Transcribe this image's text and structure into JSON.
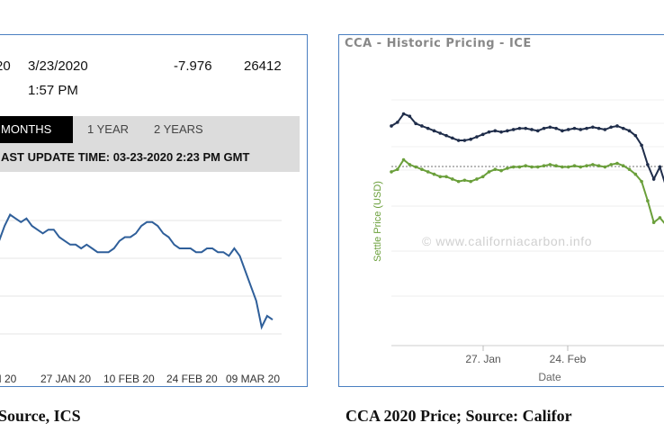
{
  "left": {
    "header": {
      "col0": "20",
      "date": "3/23/2020",
      "time": "1:57 PM",
      "change": "-7.976",
      "value": "26412"
    },
    "tabs": [
      {
        "label": "MONTHS",
        "active": true
      },
      {
        "label": "1 YEAR",
        "active": false
      },
      {
        "label": "2 YEARS",
        "active": false
      }
    ],
    "last_update": "AST UPDATE TIME: 03-23-2020 2:23 PM GMT",
    "caption": "Source, ICS",
    "line_color": "#2f5f9a"
  },
  "right": {
    "title": "CCA - Historic Pricing - ICE",
    "watermark": "© www.californiacarbon.info",
    "caption": "CCA 2020 Price; Source: Califor",
    "colors": {
      "series_a": "#1f2d4a",
      "series_b": "#6a9f3a"
    }
  },
  "chart_data": [
    {
      "type": "line",
      "title": "",
      "xlabel": "",
      "ylabel": "",
      "x_tick_labels": [
        "N 20",
        "27 JAN 20",
        "10 FEB 20",
        "24 FEB 20",
        "09 MAR 20"
      ],
      "x": [
        0,
        1,
        2,
        3,
        4,
        5,
        6,
        7,
        8,
        9,
        10,
        11,
        12,
        13,
        14,
        15,
        16,
        17,
        18,
        19,
        20,
        21,
        22,
        23,
        24,
        25,
        26,
        27,
        28,
        29,
        30,
        31,
        32,
        33,
        34,
        35,
        36,
        37,
        38,
        39,
        40,
        41,
        42,
        43,
        44,
        45,
        46,
        47,
        48,
        49,
        50
      ],
      "series": [
        {
          "values": [
            27.2,
            27.6,
            27.9,
            27.8,
            27.7,
            27.8,
            27.6,
            27.5,
            27.4,
            27.5,
            27.5,
            27.3,
            27.2,
            27.1,
            27.1,
            27.0,
            27.1,
            27.0,
            26.9,
            26.9,
            26.9,
            27.0,
            27.2,
            27.3,
            27.3,
            27.4,
            27.6,
            27.7,
            27.7,
            27.6,
            27.4,
            27.3,
            27.1,
            27.0,
            27.0,
            27.0,
            26.9,
            26.9,
            27.0,
            27.0,
            26.9,
            26.9,
            26.8,
            27.0,
            26.8,
            26.4,
            26.0,
            25.6,
            24.9,
            25.2,
            25.1
          ]
        }
      ]
    },
    {
      "type": "line",
      "title": "CCA - Historic Pricing - ICE",
      "xlabel": "Date",
      "ylabel": "Settle Price (USD)",
      "x_tick_labels": [
        "27. Jan",
        "24. Feb"
      ],
      "x": [
        0,
        1,
        2,
        3,
        4,
        5,
        6,
        7,
        8,
        9,
        10,
        11,
        12,
        13,
        14,
        15,
        16,
        17,
        18,
        19,
        20,
        21,
        22,
        23,
        24,
        25,
        26,
        27,
        28,
        29,
        30,
        31,
        32,
        33,
        34,
        35,
        36,
        37,
        38,
        39,
        40,
        41,
        42,
        43,
        44,
        45,
        46
      ],
      "series": [
        {
          "values": [
            17.42,
            17.45,
            17.52,
            17.5,
            17.44,
            17.42,
            17.4,
            17.38,
            17.36,
            17.34,
            17.32,
            17.3,
            17.3,
            17.31,
            17.33,
            17.35,
            17.37,
            17.38,
            17.37,
            17.38,
            17.39,
            17.4,
            17.4,
            17.39,
            17.38,
            17.4,
            17.41,
            17.4,
            17.38,
            17.39,
            17.4,
            17.39,
            17.4,
            17.41,
            17.4,
            17.39,
            17.41,
            17.42,
            17.4,
            17.38,
            17.34,
            17.26,
            17.1,
            16.98,
            17.08,
            16.92,
            16.88
          ]
        },
        {
          "values": [
            17.04,
            17.06,
            17.14,
            17.1,
            17.08,
            17.06,
            17.04,
            17.02,
            17.0,
            17.0,
            16.98,
            16.96,
            16.97,
            16.96,
            16.98,
            17.0,
            17.04,
            17.06,
            17.05,
            17.07,
            17.08,
            17.08,
            17.09,
            17.08,
            17.08,
            17.09,
            17.1,
            17.09,
            17.08,
            17.08,
            17.09,
            17.08,
            17.09,
            17.1,
            17.09,
            17.08,
            17.1,
            17.11,
            17.09,
            17.06,
            17.02,
            16.96,
            16.8,
            16.62,
            16.66,
            16.6,
            16.58
          ]
        }
      ]
    }
  ]
}
